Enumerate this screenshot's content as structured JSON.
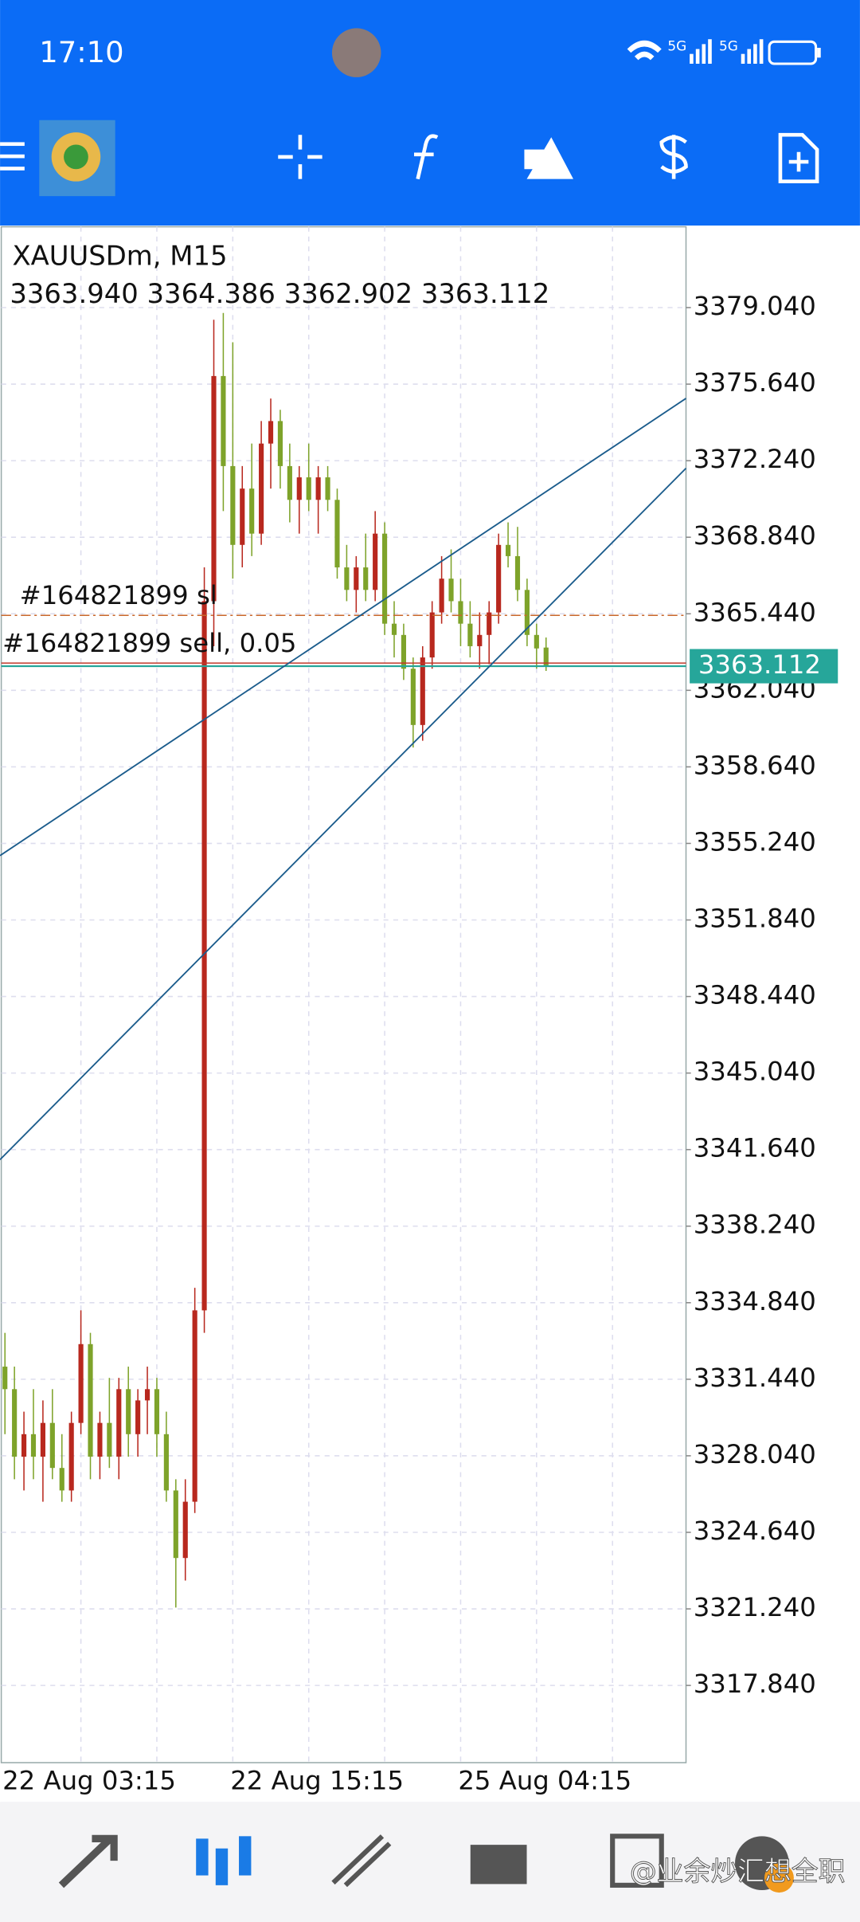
{
  "status_bar": {
    "time": "17:10",
    "network": "5G"
  },
  "watermark": "@业余炒汇想全职",
  "chart_data": {
    "type": "candlestick",
    "title": "XAUUSDm, M15",
    "subtitle": "3363.940 3364.386 3362.902 3363.112",
    "up_color": "#b8281e",
    "down_color": "#7ea32a",
    "categories": [
      "22 Aug 03:15",
      null,
      null,
      null,
      null,
      null,
      null,
      null,
      null,
      null,
      null,
      null,
      null,
      null,
      null,
      null,
      null,
      null,
      null,
      null,
      null,
      null,
      null,
      null,
      "22 Aug 15:15",
      null,
      null,
      null,
      null,
      null,
      null,
      null,
      null,
      null,
      null,
      null,
      null,
      null,
      null,
      null,
      null,
      null,
      null,
      null,
      null,
      null,
      null,
      null,
      "25 Aug 04:15",
      null,
      null,
      null,
      null,
      null,
      null,
      null,
      null,
      null
    ],
    "open": [
      3332,
      3331,
      3328,
      3329,
      3328,
      3329.5,
      3327.5,
      3326.5,
      3329.5,
      3333,
      3328,
      3329.5,
      3328,
      3331,
      3329,
      3330.5,
      3331,
      3329,
      3326.5,
      3323.5,
      3326,
      3334.5,
      3366,
      3376,
      3372,
      3368.5,
      3371,
      3369,
      3373,
      3374,
      3372,
      3370.5,
      3371.5,
      3370.5,
      3371.5,
      3370.5,
      3367.5,
      3366.5,
      3367.5,
      3366.5,
      3369,
      3365,
      3364.5,
      3363,
      3360.5,
      3363.5,
      3365.5,
      3367,
      3366,
      3365,
      3364,
      3364.5,
      3365.5,
      3368.5,
      3368,
      3366.5,
      3364.5,
      3363.94
    ],
    "high": [
      3333.5,
      3332,
      3330,
      3331,
      3330.5,
      3331,
      3329,
      3330,
      3334.5,
      3333.5,
      3330,
      3331.5,
      3331.5,
      3332,
      3331,
      3332,
      3331.5,
      3330,
      3327,
      3327,
      3335.5,
      3367.5,
      3378.5,
      3378.8,
      3377.5,
      3372,
      3373,
      3374,
      3375,
      3374.5,
      3373,
      3372,
      3373,
      3372,
      3372,
      3371,
      3368.5,
      3368,
      3369,
      3370,
      3369.5,
      3366,
      3365,
      3363.5,
      3364,
      3366,
      3368,
      3368.3,
      3367,
      3366,
      3365.5,
      3366,
      3369,
      3369.5,
      3369.3,
      3367,
      3365,
      3364.386
    ],
    "low": [
      3329,
      3327,
      3326.5,
      3327,
      3326,
      3327,
      3326,
      3326,
      3329,
      3327,
      3327,
      3327.5,
      3327,
      3328,
      3328,
      3329,
      3328,
      3326,
      3321.3,
      3322.5,
      3325.5,
      3333.5,
      3364,
      3370,
      3367,
      3367.5,
      3368,
      3368.5,
      3371,
      3371,
      3369.5,
      3369,
      3370,
      3369,
      3370,
      3367,
      3366,
      3365.5,
      3366,
      3366,
      3364.5,
      3363.5,
      3362.5,
      3359.5,
      3359.8,
      3363,
      3365,
      3365.5,
      3364,
      3363.5,
      3363,
      3363.2,
      3365,
      3367.5,
      3366,
      3364,
      3363,
      3362.902
    ],
    "close": [
      3331,
      3328,
      3329,
      3328,
      3329.5,
      3327.5,
      3326.5,
      3329.5,
      3333,
      3328,
      3329.5,
      3328,
      3331,
      3329,
      3330.5,
      3331,
      3329,
      3326.5,
      3323.5,
      3326,
      3334.5,
      3366,
      3376,
      3372,
      3368.5,
      3371,
      3369,
      3373,
      3374,
      3372,
      3370.5,
      3371.5,
      3370.5,
      3371.5,
      3370.5,
      3367.5,
      3366.5,
      3367.5,
      3366.5,
      3369,
      3365,
      3364.5,
      3363,
      3360.5,
      3363.5,
      3365.5,
      3367,
      3366,
      3365,
      3364,
      3364.5,
      3365.5,
      3368.5,
      3368,
      3366.5,
      3364.5,
      3363.9,
      3363.112
    ],
    "ylim": [
      3314.41,
      3382.63
    ],
    "yticks": [
      {
        "value": 3317.84,
        "label": "3317.840"
      },
      {
        "value": 3321.24,
        "label": "3321.240"
      },
      {
        "value": 3324.64,
        "label": "3324.640"
      },
      {
        "value": 3328.04,
        "label": "3328.040"
      },
      {
        "value": 3331.44,
        "label": "3331.440"
      },
      {
        "value": 3334.84,
        "label": "3334.840"
      },
      {
        "value": 3338.24,
        "label": "3338.240"
      },
      {
        "value": 3341.64,
        "label": "3341.640"
      },
      {
        "value": 3345.04,
        "label": "3345.040"
      },
      {
        "value": 3348.44,
        "label": "3348.440"
      },
      {
        "value": 3351.84,
        "label": "3351.840"
      },
      {
        "value": 3355.24,
        "label": "3355.240"
      },
      {
        "value": 3358.64,
        "label": "3358.640"
      },
      {
        "value": 3362.04,
        "label": "3362.040"
      },
      {
        "value": 3365.44,
        "label": "3365.440"
      },
      {
        "value": 3368.84,
        "label": "3368.840"
      },
      {
        "value": 3372.24,
        "label": "3372.240"
      },
      {
        "value": 3375.64,
        "label": "3375.640"
      },
      {
        "value": 3379.04,
        "label": "3379.040"
      }
    ],
    "orders": [
      {
        "label": "#164821899 sl",
        "value": 3365.37,
        "color": "#c8662a"
      },
      {
        "label": "#164821899 sell, 0.05",
        "value": 3363.25,
        "color": "#c0392b"
      }
    ],
    "bid": {
      "value": 3363.112,
      "label": "3363.112",
      "color": "#26a69a"
    },
    "grid": true
  }
}
